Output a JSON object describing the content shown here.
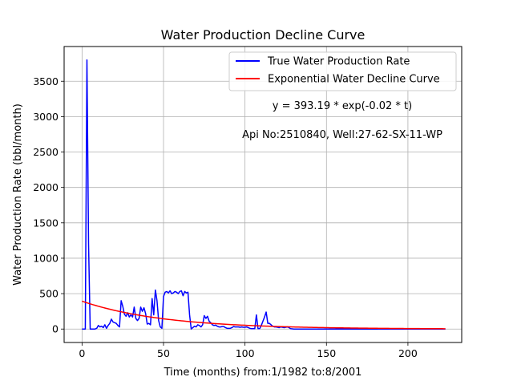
{
  "chart_data": {
    "type": "line",
    "title": "Water Production Decline Curve",
    "xlabel": "Time (months) from:1/1982 to:8/2001",
    "ylabel": "Water Production Rate (bbl/month)",
    "xlim": [
      -11,
      233
    ],
    "ylim": [
      -190,
      3990
    ],
    "xticks": [
      0,
      50,
      100,
      150,
      200
    ],
    "yticks": [
      0,
      500,
      1000,
      1500,
      2000,
      2500,
      3000,
      3500
    ],
    "grid": true,
    "legend_position": "top-right",
    "annotations": [
      "y = 393.19 * exp(-0.02 * t)",
      "Api No:2510840, Well:27-62-SX-11-WP"
    ],
    "series": [
      {
        "name": "True Water Production Rate",
        "color": "#0000ff",
        "points": [
          [
            0,
            0
          ],
          [
            2,
            0
          ],
          [
            3,
            3800
          ],
          [
            4,
            1200
          ],
          [
            5,
            0
          ],
          [
            6,
            0
          ],
          [
            7,
            0
          ],
          [
            8,
            0
          ],
          [
            9,
            10
          ],
          [
            10,
            50
          ],
          [
            11,
            30
          ],
          [
            12,
            40
          ],
          [
            13,
            20
          ],
          [
            14,
            60
          ],
          [
            15,
            10
          ],
          [
            16,
            50
          ],
          [
            17,
            80
          ],
          [
            18,
            140
          ],
          [
            19,
            100
          ],
          [
            20,
            90
          ],
          [
            21,
            80
          ],
          [
            22,
            50
          ],
          [
            23,
            30
          ],
          [
            24,
            400
          ],
          [
            25,
            320
          ],
          [
            26,
            210
          ],
          [
            27,
            180
          ],
          [
            28,
            230
          ],
          [
            29,
            170
          ],
          [
            30,
            200
          ],
          [
            31,
            170
          ],
          [
            32,
            310
          ],
          [
            33,
            150
          ],
          [
            34,
            120
          ],
          [
            35,
            150
          ],
          [
            36,
            310
          ],
          [
            37,
            250
          ],
          [
            38,
            300
          ],
          [
            39,
            220
          ],
          [
            40,
            70
          ],
          [
            41,
            80
          ],
          [
            42,
            60
          ],
          [
            43,
            430
          ],
          [
            44,
            200
          ],
          [
            45,
            550
          ],
          [
            46,
            400
          ],
          [
            47,
            120
          ],
          [
            48,
            30
          ],
          [
            49,
            10
          ],
          [
            50,
            460
          ],
          [
            51,
            520
          ],
          [
            52,
            530
          ],
          [
            53,
            510
          ],
          [
            54,
            540
          ],
          [
            55,
            500
          ],
          [
            56,
            510
          ],
          [
            57,
            530
          ],
          [
            58,
            520
          ],
          [
            59,
            500
          ],
          [
            60,
            530
          ],
          [
            61,
            540
          ],
          [
            62,
            470
          ],
          [
            63,
            530
          ],
          [
            64,
            510
          ],
          [
            65,
            520
          ],
          [
            66,
            200
          ],
          [
            67,
            0
          ],
          [
            68,
            20
          ],
          [
            69,
            40
          ],
          [
            70,
            30
          ],
          [
            71,
            60
          ],
          [
            72,
            50
          ],
          [
            73,
            30
          ],
          [
            74,
            60
          ],
          [
            75,
            190
          ],
          [
            76,
            150
          ],
          [
            77,
            180
          ],
          [
            78,
            110
          ],
          [
            79,
            90
          ],
          [
            80,
            60
          ],
          [
            81,
            50
          ],
          [
            82,
            55
          ],
          [
            83,
            40
          ],
          [
            84,
            30
          ],
          [
            85,
            30
          ],
          [
            86,
            35
          ],
          [
            87,
            35
          ],
          [
            88,
            20
          ],
          [
            89,
            10
          ],
          [
            90,
            10
          ],
          [
            91,
            10
          ],
          [
            92,
            20
          ],
          [
            93,
            35
          ],
          [
            94,
            30
          ],
          [
            95,
            30
          ],
          [
            96,
            30
          ],
          [
            97,
            25
          ],
          [
            98,
            30
          ],
          [
            99,
            25
          ],
          [
            100,
            25
          ],
          [
            101,
            30
          ],
          [
            102,
            20
          ],
          [
            103,
            10
          ],
          [
            104,
            5
          ],
          [
            105,
            5
          ],
          [
            106,
            5
          ],
          [
            107,
            200
          ],
          [
            108,
            5
          ],
          [
            109,
            5
          ],
          [
            110,
            50
          ],
          [
            111,
            110
          ],
          [
            112,
            170
          ],
          [
            113,
            240
          ],
          [
            114,
            80
          ],
          [
            115,
            80
          ],
          [
            116,
            60
          ],
          [
            117,
            40
          ],
          [
            118,
            30
          ],
          [
            119,
            30
          ],
          [
            120,
            25
          ],
          [
            121,
            20
          ],
          [
            122,
            30
          ],
          [
            123,
            25
          ],
          [
            124,
            20
          ],
          [
            125,
            25
          ],
          [
            126,
            30
          ],
          [
            127,
            20
          ],
          [
            128,
            5
          ],
          [
            130,
            0
          ],
          [
            140,
            0
          ],
          [
            150,
            0
          ],
          [
            160,
            0
          ],
          [
            170,
            0
          ],
          [
            180,
            0
          ],
          [
            190,
            0
          ],
          [
            200,
            0
          ],
          [
            210,
            0
          ],
          [
            223,
            0
          ]
        ]
      },
      {
        "name": "Exponential Water Decline Curve",
        "color": "#ff0000",
        "model": {
          "a": 393.19,
          "b": 0.02,
          "t_start": 0,
          "t_end": 223
        }
      }
    ]
  }
}
